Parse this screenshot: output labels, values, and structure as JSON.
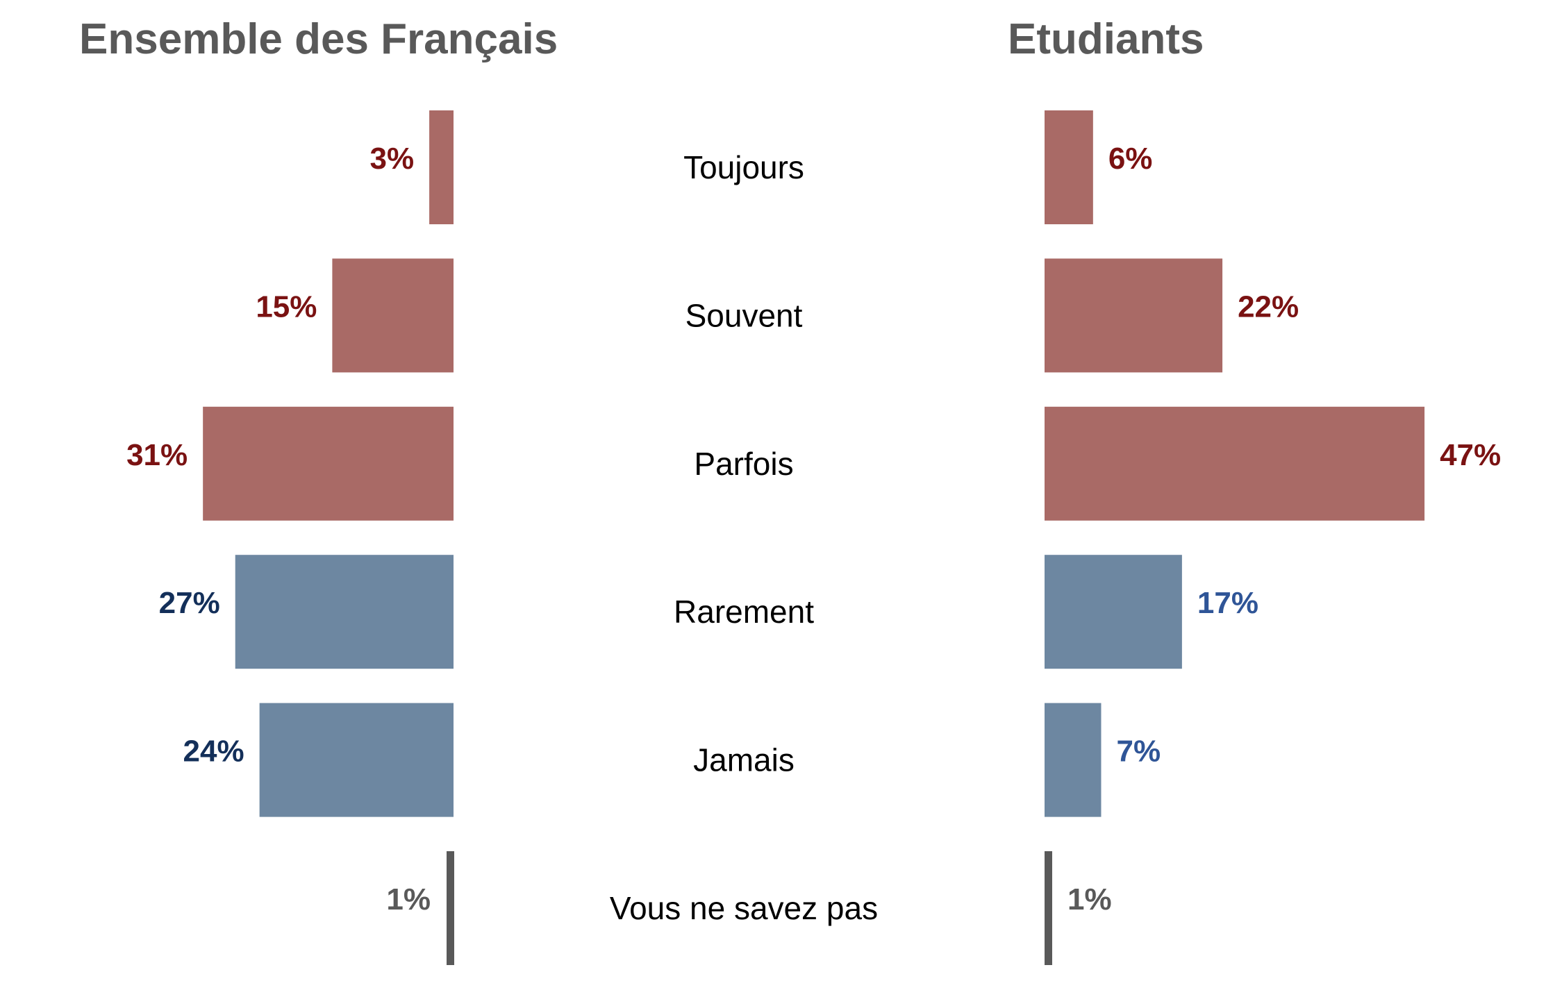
{
  "colors": {
    "positive_bar": "#A96A66",
    "negative_bar": "#6D87A1",
    "neutral_bar": "#595959",
    "positive_label": "#7A1212",
    "negative_label_left": "#132F59",
    "negative_label_right": "#2F5597",
    "neutral_label": "#595959",
    "title": "#595959"
  },
  "chart_data": [
    {
      "type": "bar",
      "orientation": "horizontal",
      "direction": "leftward",
      "title": "Ensemble des Français",
      "categories": [
        "Toujours",
        "Souvent",
        "Parfois",
        "Rarement",
        "Jamais",
        "Vous ne savez pas"
      ],
      "values": [
        3,
        15,
        31,
        27,
        24,
        1
      ],
      "value_labels": [
        "3%",
        "15%",
        "31%",
        "27%",
        "24%",
        "1%"
      ],
      "unit": "%",
      "grid": false
    },
    {
      "type": "bar",
      "orientation": "horizontal",
      "direction": "rightward",
      "title": "Etudiants",
      "categories": [
        "Toujours",
        "Souvent",
        "Parfois",
        "Rarement",
        "Jamais",
        "Vous ne savez pas"
      ],
      "values": [
        6,
        22,
        47,
        17,
        7,
        1
      ],
      "value_labels": [
        "6%",
        "22%",
        "47%",
        "17%",
        "7%",
        "1%"
      ],
      "unit": "%",
      "grid": false
    }
  ]
}
